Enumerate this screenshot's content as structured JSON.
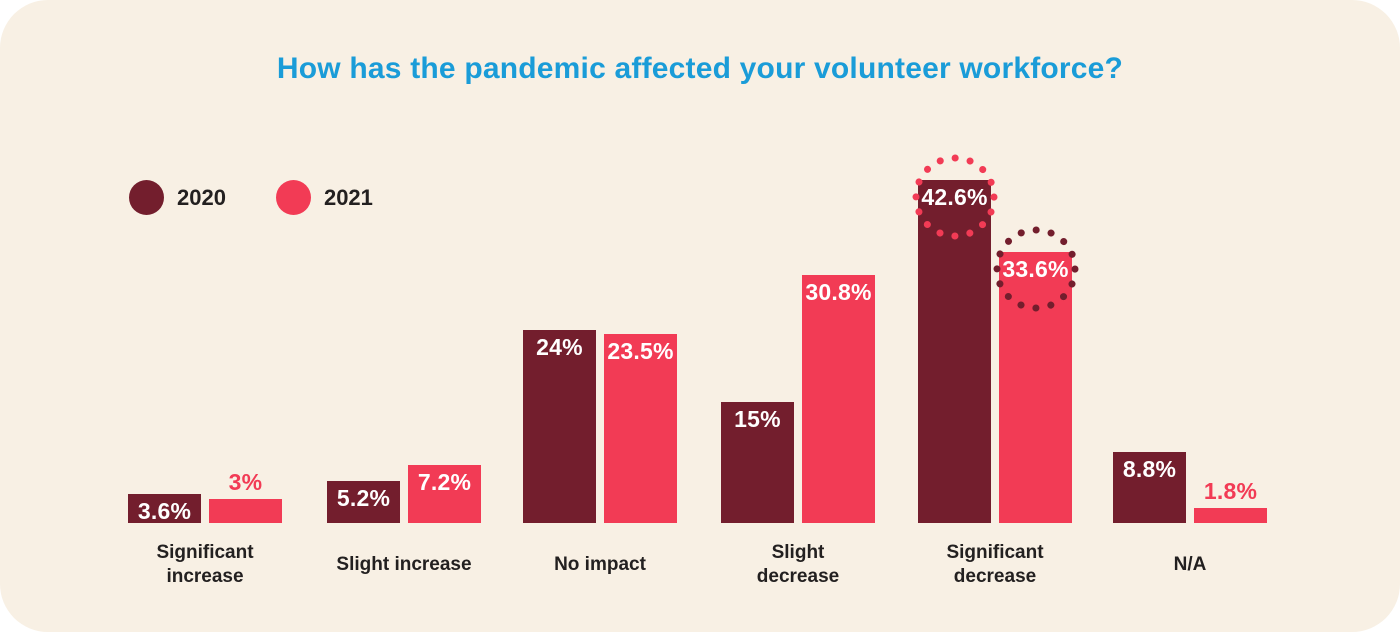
{
  "card": {
    "background_color": "#F8F0E4"
  },
  "title": {
    "text": "How has the pandemic affected your volunteer workforce?",
    "color": "#1A9CD8"
  },
  "legend": {
    "items": [
      {
        "label": "2020",
        "color": "#731E2D"
      },
      {
        "label": "2021",
        "color": "#F23B55"
      }
    ]
  },
  "chart_data": {
    "type": "bar",
    "title": "How has the pandemic affected your volunteer workforce?",
    "categories": [
      "Significant\nincrease",
      "Slight increase",
      "No impact",
      "Slight\ndecrease",
      "Significant\ndecrease",
      "N/A"
    ],
    "series": [
      {
        "name": "2020",
        "color": "#731E2D",
        "values": [
          3.6,
          5.2,
          24,
          15,
          42.6,
          8.8
        ],
        "data_labels": [
          "3.6%",
          "5.2%",
          "24%",
          "15%",
          "42.6%",
          "8.8%"
        ]
      },
      {
        "name": "2021",
        "color": "#F23B55",
        "values": [
          3,
          7.2,
          23.5,
          30.8,
          33.6,
          1.8
        ],
        "data_labels": [
          "3%",
          "7.2%",
          "23.5%",
          "30.8%",
          "33.6%",
          "1.8%"
        ]
      }
    ],
    "value_unit": "%",
    "xlabel": "",
    "ylabel": "",
    "ylim": [
      0,
      45
    ],
    "grid": false,
    "axes_hidden": true,
    "legend_position": "top-left",
    "data_label_color_inside": "#ffffff",
    "highlight_rings": [
      {
        "category_index": 4,
        "series_index": 0,
        "category": "Significant decrease",
        "series": "2020",
        "ring_color": "#F23B55"
      },
      {
        "category_index": 4,
        "series_index": 1,
        "category": "Significant decrease",
        "series": "2021",
        "ring_color": "#731E2D"
      }
    ]
  }
}
